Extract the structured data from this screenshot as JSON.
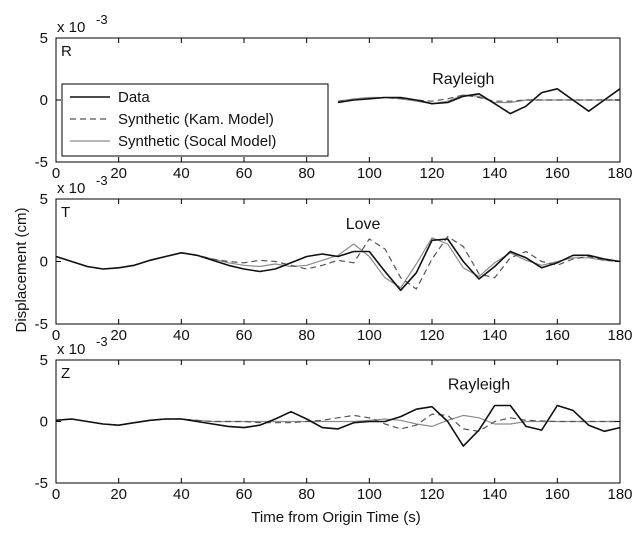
{
  "chart_data": {
    "type": "line",
    "xlabel": "Time from Origin Time (s)",
    "ylabel": "Displacement (cm)",
    "xlim": [
      0,
      180
    ],
    "xticks": [
      0,
      20,
      40,
      60,
      80,
      100,
      120,
      140,
      160,
      180
    ],
    "legend": {
      "placement": "top-left of first panel",
      "entries": [
        "Data",
        "Synthetic (Kam. Model)",
        "Synthetic (Socal Model)"
      ]
    },
    "series_styles": {
      "Data": {
        "color": "#111111",
        "dash": "solid",
        "width": 1.6
      },
      "Synthetic (Kam. Model)": {
        "color": "#555555",
        "dash": "dashed",
        "width": 1.2
      },
      "Synthetic (Socal Model)": {
        "color": "#8c8c8c",
        "dash": "solid",
        "width": 1.2
      }
    },
    "panels": [
      {
        "id": "R",
        "label": "R",
        "scale_label": "x 10",
        "scale_exp": "-3",
        "ylim": [
          -5,
          5
        ],
        "yticks": [
          -5,
          0,
          5
        ],
        "annotation": {
          "text": "Rayleigh",
          "x": 130,
          "y": 1.3
        },
        "series": [
          {
            "name": "Data",
            "x": [
              90,
              95,
              100,
              105,
              110,
              115,
              120,
              125,
              130,
              135,
              140,
              145,
              150,
              155,
              160,
              165,
              170,
              175,
              180
            ],
            "y": [
              -0.2,
              0.0,
              0.1,
              0.2,
              0.2,
              0.0,
              -0.3,
              -0.2,
              0.3,
              0.5,
              -0.3,
              -1.1,
              -0.5,
              0.6,
              0.9,
              0.0,
              -0.9,
              0.0,
              0.9
            ]
          },
          {
            "name": "Synthetic (Kam. Model)",
            "x": [
              90,
              95,
              100,
              105,
              110,
              115,
              120,
              125,
              130,
              135,
              140,
              145,
              150,
              160,
              170,
              180
            ],
            "y": [
              -0.1,
              0.0,
              0.1,
              0.2,
              0.1,
              0.0,
              -0.1,
              0.1,
              0.4,
              0.2,
              -0.1,
              -0.1,
              0.0,
              0.0,
              0.0,
              0.0
            ]
          },
          {
            "name": "Synthetic (Socal Model)",
            "x": [
              90,
              95,
              100,
              105,
              110,
              115,
              120,
              125,
              130,
              135,
              140,
              145,
              150,
              160,
              170,
              180
            ],
            "y": [
              -0.1,
              0.1,
              0.2,
              0.2,
              0.1,
              -0.1,
              -0.3,
              -0.1,
              0.4,
              0.3,
              -0.2,
              -0.2,
              0.0,
              0.0,
              0.0,
              0.0
            ]
          }
        ]
      },
      {
        "id": "T",
        "label": "T",
        "scale_label": "x 10",
        "scale_exp": "-3",
        "ylim": [
          -5,
          5
        ],
        "yticks": [
          -5,
          0,
          5
        ],
        "annotation": {
          "text": "Love",
          "x": 98,
          "y": 2.6
        },
        "series": [
          {
            "name": "Data",
            "x": [
              0,
              5,
              10,
              15,
              20,
              25,
              30,
              35,
              40,
              45,
              50,
              55,
              60,
              65,
              70,
              75,
              80,
              85,
              90,
              95,
              100,
              105,
              110,
              115,
              120,
              125,
              130,
              135,
              140,
              145,
              150,
              155,
              160,
              165,
              170,
              175,
              180
            ],
            "y": [
              0.4,
              0.0,
              -0.4,
              -0.6,
              -0.5,
              -0.3,
              0.1,
              0.4,
              0.7,
              0.5,
              0.1,
              -0.3,
              -0.6,
              -0.8,
              -0.6,
              -0.1,
              0.4,
              0.6,
              0.4,
              0.8,
              0.8,
              -0.8,
              -2.3,
              -0.9,
              1.7,
              1.8,
              0.0,
              -1.4,
              -0.4,
              0.8,
              0.3,
              -0.5,
              -0.1,
              0.5,
              0.5,
              0.2,
              0.0
            ]
          },
          {
            "name": "Synthetic (Kam. Model)",
            "x": [
              0,
              5,
              10,
              15,
              20,
              25,
              30,
              35,
              40,
              45,
              50,
              55,
              60,
              65,
              70,
              75,
              80,
              85,
              90,
              95,
              100,
              105,
              110,
              115,
              120,
              125,
              130,
              135,
              140,
              145,
              150,
              155,
              160,
              165,
              170,
              175,
              180
            ],
            "y": [
              0.4,
              0.0,
              -0.4,
              -0.6,
              -0.5,
              -0.3,
              0.1,
              0.4,
              0.7,
              0.5,
              0.2,
              0.0,
              -0.1,
              0.1,
              0.0,
              -0.3,
              -0.6,
              -0.3,
              0.1,
              -0.1,
              1.8,
              1.0,
              -1.3,
              -2.2,
              0.2,
              2.0,
              1.2,
              -1.0,
              -1.3,
              0.3,
              0.8,
              0.0,
              -0.3,
              0.2,
              0.4,
              0.1,
              0.0
            ]
          },
          {
            "name": "Synthetic (Socal Model)",
            "x": [
              0,
              5,
              10,
              15,
              20,
              25,
              30,
              35,
              40,
              45,
              50,
              55,
              60,
              65,
              70,
              75,
              80,
              85,
              90,
              95,
              100,
              105,
              110,
              115,
              120,
              125,
              130,
              135,
              140,
              145,
              150,
              155,
              160,
              165,
              170,
              175,
              180
            ],
            "y": [
              0.4,
              0.0,
              -0.4,
              -0.6,
              -0.5,
              -0.3,
              0.1,
              0.4,
              0.7,
              0.5,
              0.2,
              -0.1,
              -0.3,
              -0.4,
              -0.2,
              -0.4,
              -0.3,
              0.1,
              0.5,
              1.4,
              0.4,
              -1.3,
              -2.1,
              -0.2,
              1.9,
              1.4,
              -0.5,
              -1.2,
              -0.1,
              0.7,
              0.1,
              -0.3,
              0.0,
              0.3,
              0.3,
              0.1,
              0.0
            ]
          }
        ]
      },
      {
        "id": "Z",
        "label": "Z",
        "scale_label": "x 10",
        "scale_exp": "-3",
        "ylim": [
          -5,
          5
        ],
        "yticks": [
          -5,
          0,
          5
        ],
        "annotation": {
          "text": "Rayleigh",
          "x": 135,
          "y": 2.6
        },
        "series": [
          {
            "name": "Data",
            "x": [
              0,
              5,
              10,
              15,
              20,
              25,
              30,
              35,
              40,
              45,
              50,
              55,
              60,
              65,
              70,
              75,
              80,
              85,
              90,
              95,
              100,
              105,
              110,
              115,
              120,
              125,
              130,
              135,
              140,
              145,
              150,
              155,
              160,
              165,
              170,
              175,
              180
            ],
            "y": [
              0.1,
              0.2,
              0.0,
              -0.2,
              -0.3,
              -0.1,
              0.1,
              0.2,
              0.2,
              0.0,
              -0.2,
              -0.4,
              -0.5,
              -0.3,
              0.2,
              0.8,
              0.2,
              -0.5,
              -0.6,
              -0.1,
              0.0,
              0.0,
              0.4,
              1.0,
              1.2,
              0.0,
              -2.0,
              -0.7,
              1.3,
              1.3,
              -0.4,
              -0.7,
              1.3,
              0.9,
              -0.3,
              -0.8,
              -0.5
            ]
          },
          {
            "name": "Synthetic (Kam. Model)",
            "x": [
              0,
              5,
              10,
              15,
              20,
              25,
              30,
              35,
              40,
              45,
              50,
              55,
              60,
              65,
              70,
              75,
              80,
              85,
              90,
              95,
              100,
              105,
              110,
              115,
              120,
              125,
              130,
              135,
              140,
              145,
              150,
              160,
              170,
              180
            ],
            "y": [
              0.1,
              0.2,
              0.0,
              -0.2,
              -0.3,
              -0.1,
              0.1,
              0.2,
              0.2,
              0.1,
              0.0,
              0.0,
              0.0,
              -0.1,
              -0.1,
              -0.1,
              0.0,
              0.1,
              0.3,
              0.5,
              0.3,
              -0.2,
              -0.6,
              -0.3,
              0.6,
              0.5,
              -0.6,
              -0.8,
              0.0,
              0.3,
              0.1,
              0.0,
              0.0,
              0.0
            ]
          },
          {
            "name": "Synthetic (Socal Model)",
            "x": [
              0,
              5,
              10,
              15,
              20,
              25,
              30,
              35,
              40,
              45,
              50,
              55,
              60,
              65,
              70,
              75,
              80,
              85,
              90,
              95,
              100,
              105,
              110,
              115,
              120,
              125,
              130,
              135,
              140,
              145,
              150,
              160,
              170,
              180
            ],
            "y": [
              0.1,
              0.2,
              0.0,
              -0.2,
              -0.3,
              -0.1,
              0.1,
              0.2,
              0.2,
              0.1,
              0.0,
              0.0,
              0.0,
              0.0,
              0.0,
              0.0,
              0.0,
              0.0,
              0.0,
              0.0,
              0.1,
              0.2,
              0.1,
              -0.2,
              -0.4,
              0.1,
              0.5,
              0.3,
              -0.2,
              -0.2,
              0.0,
              0.0,
              0.0,
              0.0
            ]
          }
        ]
      }
    ]
  }
}
